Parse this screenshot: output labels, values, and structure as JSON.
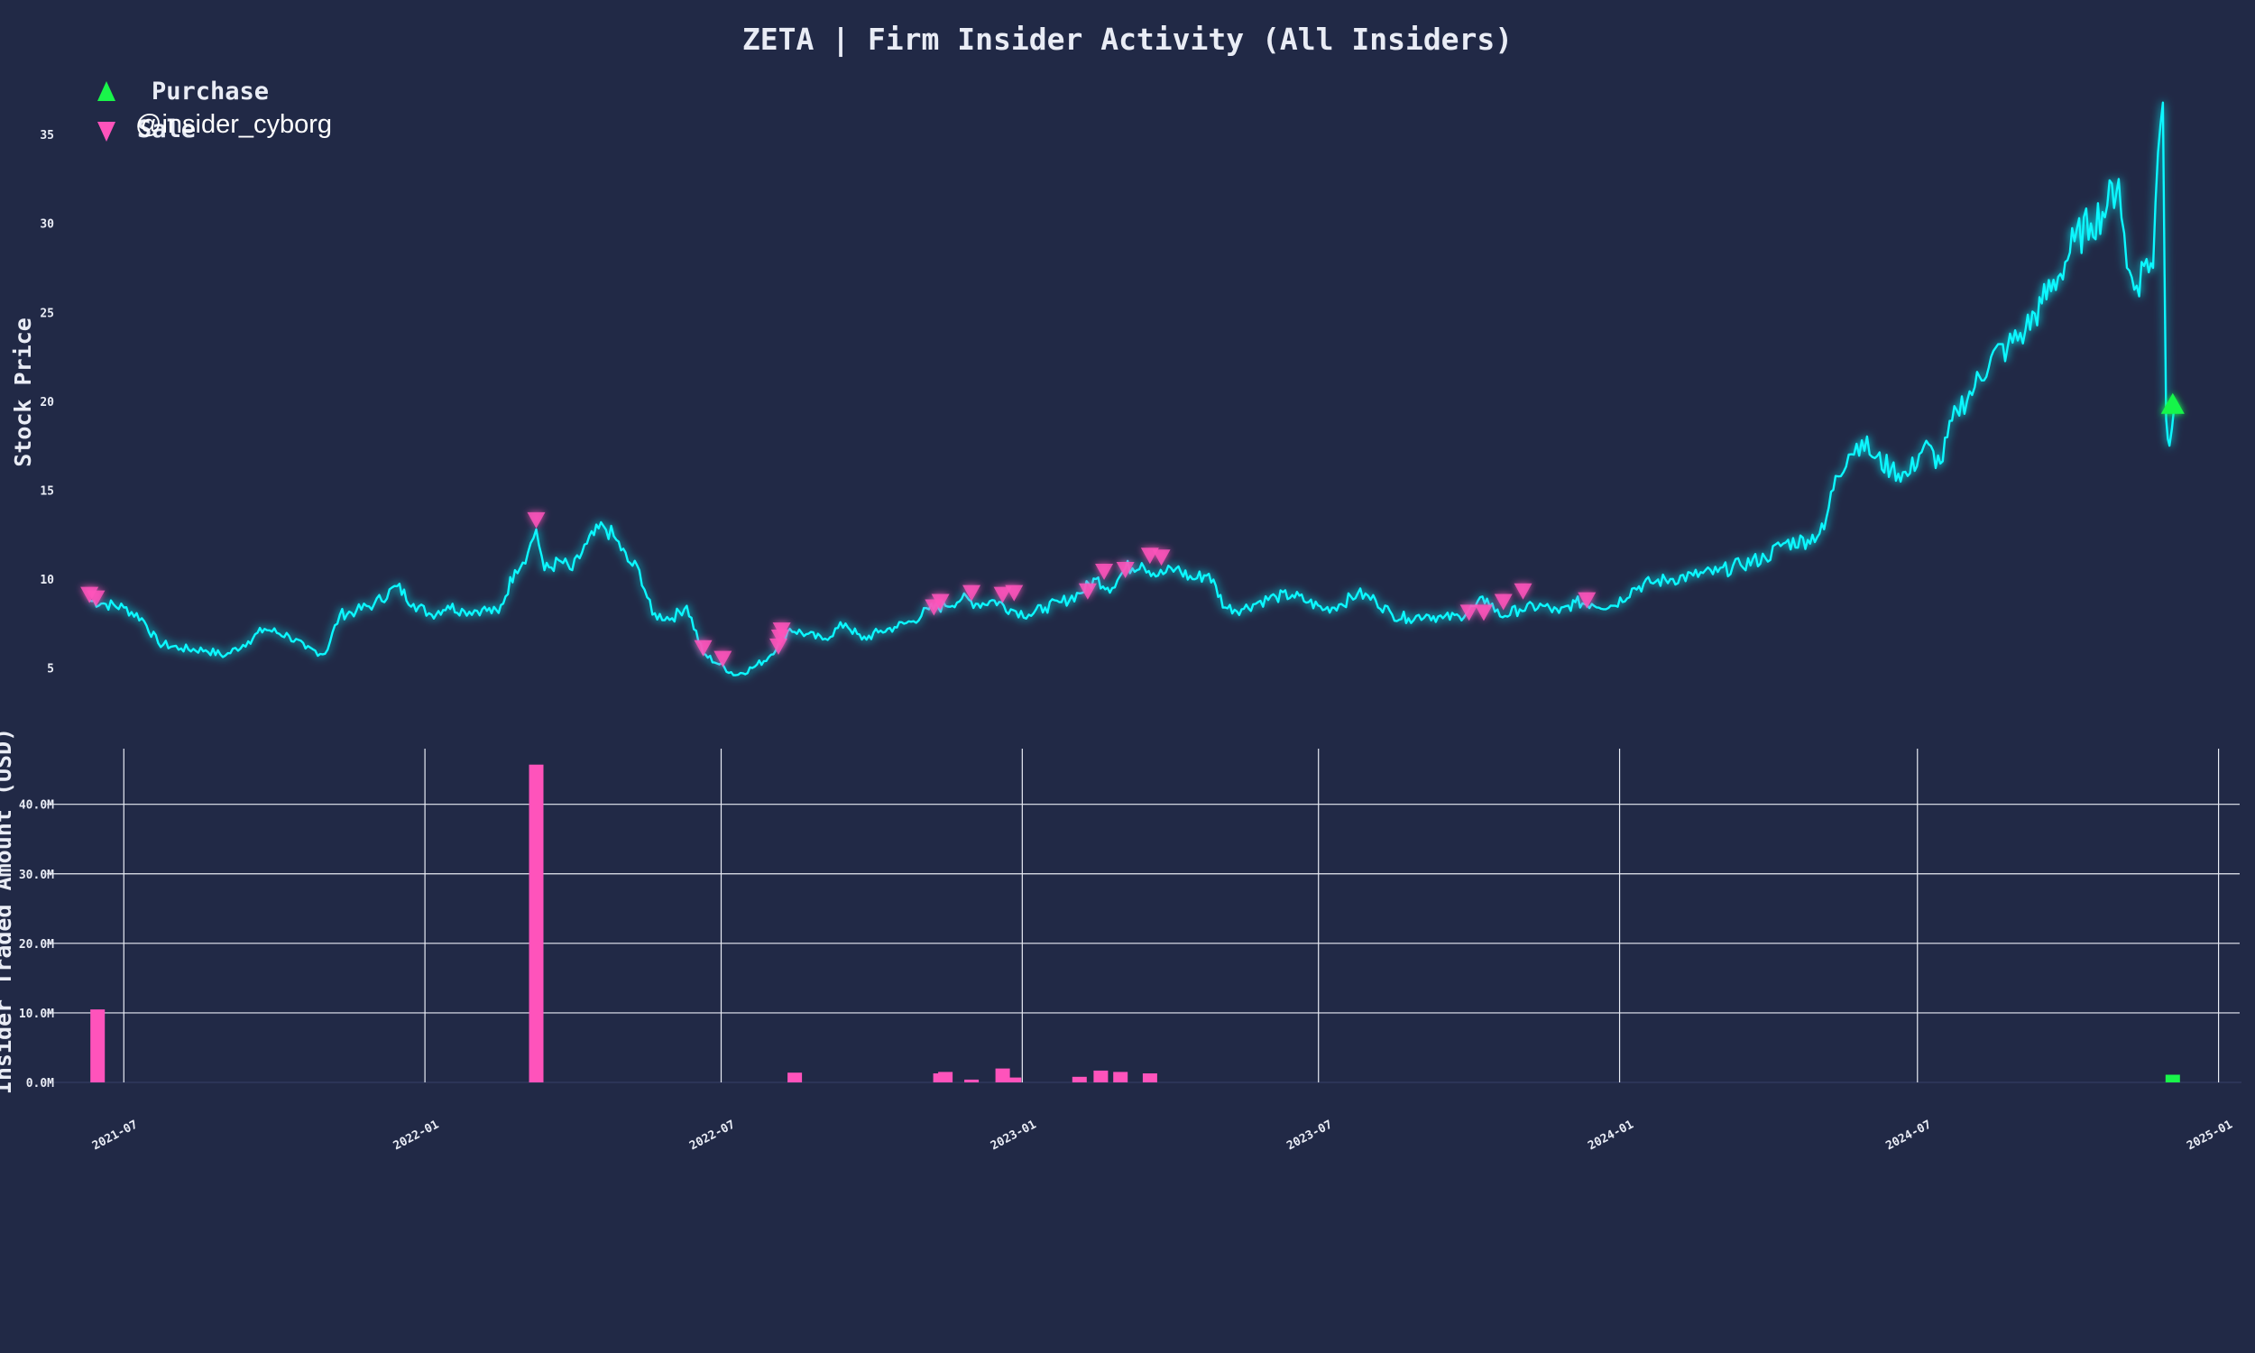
{
  "chart_data": [
    {
      "type": "line",
      "title": "ZETA | Firm Insider Activity (All Insiders)",
      "ylabel": "Stock Price",
      "ylim": [
        3,
        38
      ],
      "yticks": [
        5,
        10,
        15,
        20,
        25,
        30,
        35
      ],
      "grid": false,
      "legend": {
        "placement": "top-left",
        "entries": [
          {
            "label": "Purchase",
            "marker": "triangle-up",
            "color": "#19f54a"
          },
          {
            "label": "Sale",
            "marker": "triangle-down",
            "color": "#fe53bb"
          }
        ]
      },
      "watermark": "@insider_cyborg",
      "line_color": "#08f7fe",
      "price_series": [
        [
          "2021-06-10",
          8.8
        ],
        [
          "2021-06-20",
          8.6
        ],
        [
          "2021-07-01",
          8.4
        ],
        [
          "2021-07-12",
          7.8
        ],
        [
          "2021-07-22",
          6.4
        ],
        [
          "2021-08-05",
          6.1
        ],
        [
          "2021-08-20",
          6.0
        ],
        [
          "2021-09-01",
          5.7
        ],
        [
          "2021-09-15",
          6.5
        ],
        [
          "2021-09-25",
          7.2
        ],
        [
          "2021-10-10",
          6.8
        ],
        [
          "2021-10-20",
          6.1
        ],
        [
          "2021-11-01",
          5.8
        ],
        [
          "2021-11-10",
          8.0
        ],
        [
          "2021-11-20",
          8.2
        ],
        [
          "2021-12-01",
          8.6
        ],
        [
          "2021-12-15",
          9.6
        ],
        [
          "2021-12-25",
          8.6
        ],
        [
          "2022-01-05",
          8.0
        ],
        [
          "2022-01-15",
          8.5
        ],
        [
          "2022-01-25",
          8.2
        ],
        [
          "2022-02-05",
          8.3
        ],
        [
          "2022-02-15",
          8.1
        ],
        [
          "2022-02-25",
          10.5
        ],
        [
          "2022-03-05",
          11.5
        ],
        [
          "2022-03-10",
          12.8
        ],
        [
          "2022-03-15",
          10.5
        ],
        [
          "2022-03-25",
          11.0
        ],
        [
          "2022-04-01",
          10.5
        ],
        [
          "2022-04-10",
          12.0
        ],
        [
          "2022-04-20",
          13.0
        ],
        [
          "2022-04-28",
          12.2
        ],
        [
          "2022-05-05",
          11.0
        ],
        [
          "2022-05-12",
          10.5
        ],
        [
          "2022-05-20",
          8.0
        ],
        [
          "2022-06-01",
          7.8
        ],
        [
          "2022-06-10",
          8.5
        ],
        [
          "2022-06-20",
          5.8
        ],
        [
          "2022-06-30",
          5.2
        ],
        [
          "2022-07-10",
          4.6
        ],
        [
          "2022-07-20",
          5.0
        ],
        [
          "2022-07-30",
          5.6
        ],
        [
          "2022-08-05",
          6.4
        ],
        [
          "2022-08-12",
          7.2
        ],
        [
          "2022-08-22",
          6.9
        ],
        [
          "2022-09-01",
          6.6
        ],
        [
          "2022-09-15",
          7.5
        ],
        [
          "2022-09-25",
          6.6
        ],
        [
          "2022-10-05",
          7.0
        ],
        [
          "2022-10-15",
          7.3
        ],
        [
          "2022-10-25",
          7.6
        ],
        [
          "2022-11-05",
          8.3
        ],
        [
          "2022-11-15",
          8.5
        ],
        [
          "2022-11-25",
          8.9
        ],
        [
          "2022-12-05",
          8.6
        ],
        [
          "2022-12-15",
          8.8
        ],
        [
          "2022-12-25",
          8.3
        ],
        [
          "2023-01-05",
          8.0
        ],
        [
          "2023-01-15",
          8.4
        ],
        [
          "2023-01-25",
          8.7
        ],
        [
          "2023-02-05",
          9.2
        ],
        [
          "2023-02-15",
          10.0
        ],
        [
          "2023-02-25",
          9.5
        ],
        [
          "2023-03-05",
          10.6
        ],
        [
          "2023-03-15",
          10.9
        ],
        [
          "2023-03-25",
          10.2
        ],
        [
          "2023-04-05",
          10.6
        ],
        [
          "2023-04-15",
          10.0
        ],
        [
          "2023-04-25",
          10.3
        ],
        [
          "2023-05-05",
          8.4
        ],
        [
          "2023-05-15",
          8.3
        ],
        [
          "2023-05-25",
          8.7
        ],
        [
          "2023-06-05",
          9.0
        ],
        [
          "2023-06-15",
          9.1
        ],
        [
          "2023-06-25",
          8.7
        ],
        [
          "2023-07-05",
          8.3
        ],
        [
          "2023-07-15",
          8.6
        ],
        [
          "2023-07-25",
          9.2
        ],
        [
          "2023-08-05",
          8.8
        ],
        [
          "2023-08-15",
          8.0
        ],
        [
          "2023-08-25",
          7.8
        ],
        [
          "2023-09-05",
          8.0
        ],
        [
          "2023-09-15",
          7.8
        ],
        [
          "2023-09-25",
          7.9
        ],
        [
          "2023-10-05",
          8.5
        ],
        [
          "2023-10-12",
          8.9
        ],
        [
          "2023-10-20",
          7.9
        ],
        [
          "2023-11-01",
          8.3
        ],
        [
          "2023-11-15",
          8.5
        ],
        [
          "2023-11-25",
          8.1
        ],
        [
          "2023-12-05",
          8.7
        ],
        [
          "2023-12-15",
          8.6
        ],
        [
          "2023-12-28",
          8.5
        ],
        [
          "2024-01-10",
          9.5
        ],
        [
          "2024-01-20",
          9.8
        ],
        [
          "2024-02-01",
          10.0
        ],
        [
          "2024-02-15",
          10.2
        ],
        [
          "2024-03-01",
          10.4
        ],
        [
          "2024-03-15",
          10.8
        ],
        [
          "2024-03-30",
          11.2
        ],
        [
          "2024-04-10",
          12.0
        ],
        [
          "2024-04-25",
          12.2
        ],
        [
          "2024-05-05",
          12.8
        ],
        [
          "2024-05-12",
          15.8
        ],
        [
          "2024-05-20",
          17.0
        ],
        [
          "2024-05-28",
          17.8
        ],
        [
          "2024-06-05",
          16.8
        ],
        [
          "2024-06-15",
          16.2
        ],
        [
          "2024-06-25",
          15.8
        ],
        [
          "2024-07-05",
          17.5
        ],
        [
          "2024-07-15",
          16.5
        ],
        [
          "2024-07-25",
          19.5
        ],
        [
          "2024-08-05",
          20.8
        ],
        [
          "2024-08-15",
          22.5
        ],
        [
          "2024-08-25",
          23.0
        ],
        [
          "2024-09-05",
          24.0
        ],
        [
          "2024-09-15",
          25.5
        ],
        [
          "2024-09-25",
          27.0
        ],
        [
          "2024-10-05",
          29.0
        ],
        [
          "2024-10-15",
          30.0
        ],
        [
          "2024-10-25",
          31.0
        ],
        [
          "2024-11-01",
          32.5
        ],
        [
          "2024-11-06",
          27.5
        ],
        [
          "2024-11-12",
          26.5
        ],
        [
          "2024-11-18",
          28.0
        ],
        [
          "2024-11-22",
          27.5
        ],
        [
          "2024-11-25",
          34.0
        ],
        [
          "2024-11-28",
          36.8
        ],
        [
          "2024-11-30",
          19.0
        ],
        [
          "2024-12-02",
          17.5
        ],
        [
          "2024-12-05",
          19.8
        ]
      ],
      "sales": [
        [
          "2021-06-10",
          8.8
        ],
        [
          "2021-06-14",
          8.6
        ],
        [
          "2022-03-10",
          13.0
        ],
        [
          "2022-06-20",
          5.8
        ],
        [
          "2022-07-02",
          5.2
        ],
        [
          "2022-08-05",
          5.9
        ],
        [
          "2022-08-06",
          6.4
        ],
        [
          "2022-08-07",
          6.8
        ],
        [
          "2022-11-08",
          8.1
        ],
        [
          "2022-11-12",
          8.4
        ],
        [
          "2022-12-01",
          8.9
        ],
        [
          "2022-12-20",
          8.8
        ],
        [
          "2022-12-27",
          8.9
        ],
        [
          "2023-02-10",
          9.0
        ],
        [
          "2023-02-20",
          10.1
        ],
        [
          "2023-03-05",
          10.2
        ],
        [
          "2023-03-20",
          11.0
        ],
        [
          "2023-03-27",
          10.9
        ],
        [
          "2023-10-01",
          7.8
        ],
        [
          "2023-10-10",
          7.8
        ],
        [
          "2023-10-22",
          8.4
        ],
        [
          "2023-11-03",
          9.0
        ],
        [
          "2023-12-12",
          8.5
        ]
      ],
      "purchases": [
        [
          "2024-12-04",
          19.8
        ]
      ]
    },
    {
      "type": "bar",
      "ylabel": "Insider Traded Amount (USD)",
      "ylim": [
        0,
        48
      ],
      "yunit": "M",
      "yticks": [
        "0.0M",
        "10.0M",
        "20.0M",
        "30.0M",
        "40.0M"
      ],
      "xticks": [
        "2021-07",
        "2022-01",
        "2022-07",
        "2023-01",
        "2023-07",
        "2024-01",
        "2024-07",
        "2025-01"
      ],
      "grid": true,
      "series": [
        {
          "type": "sale",
          "color": "#fe53bb",
          "values": [
            [
              "2021-06-15",
              10.5
            ],
            [
              "2022-03-10",
              45.7
            ],
            [
              "2022-08-15",
              1.4
            ],
            [
              "2022-11-12",
              1.3
            ],
            [
              "2022-11-15",
              1.5
            ],
            [
              "2022-12-01",
              0.4
            ],
            [
              "2022-12-20",
              2.0
            ],
            [
              "2022-12-27",
              0.7
            ],
            [
              "2023-02-05",
              0.8
            ],
            [
              "2023-02-18",
              1.7
            ],
            [
              "2023-03-02",
              1.5
            ],
            [
              "2023-03-20",
              1.3
            ]
          ]
        },
        {
          "type": "purchase",
          "color": "#19f54a",
          "values": [
            [
              "2024-12-04",
              1.1
            ]
          ]
        }
      ]
    }
  ]
}
